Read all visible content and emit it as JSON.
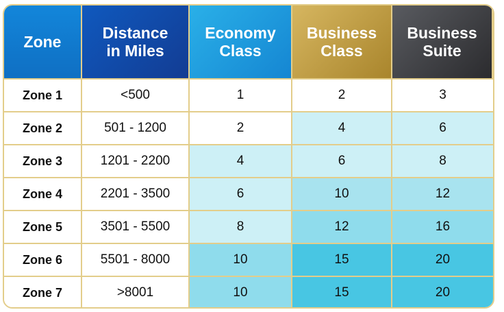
{
  "table": {
    "headers": [
      "Zone",
      "Distance\nin Miles",
      "Economy\nClass",
      "Business\nClass",
      "Business\nSuite"
    ],
    "rows": [
      {
        "zone": "Zone 1",
        "distance": "<500",
        "economy": "1",
        "business": "2",
        "suite": "3"
      },
      {
        "zone": "Zone 2",
        "distance": "501 - 1200",
        "economy": "2",
        "business": "4",
        "suite": "6"
      },
      {
        "zone": "Zone 3",
        "distance": "1201 - 2200",
        "economy": "4",
        "business": "6",
        "suite": "8"
      },
      {
        "zone": "Zone 4",
        "distance": "2201 - 3500",
        "economy": "6",
        "business": "10",
        "suite": "12"
      },
      {
        "zone": "Zone 5",
        "distance": "3501 - 5500",
        "economy": "8",
        "business": "12",
        "suite": "16"
      },
      {
        "zone": "Zone 6",
        "distance": "5501 - 8000",
        "economy": "10",
        "business": "15",
        "suite": "20"
      },
      {
        "zone": "Zone 7",
        "distance": ">8001",
        "economy": "10",
        "business": "15",
        "suite": "20"
      }
    ],
    "cell_colors": {
      "white": "#ffffff",
      "light": "#cdf0f6",
      "mid": "#a8e3ef",
      "strong": "#8fdcec",
      "deep": "#48c6e3"
    },
    "fill": [
      [
        "white",
        "white",
        "white",
        "white",
        "white"
      ],
      [
        "white",
        "white",
        "white",
        "light",
        "light"
      ],
      [
        "white",
        "white",
        "light",
        "light",
        "light"
      ],
      [
        "white",
        "white",
        "light",
        "mid",
        "mid"
      ],
      [
        "white",
        "white",
        "light",
        "strong",
        "strong"
      ],
      [
        "white",
        "white",
        "strong",
        "deep",
        "deep"
      ],
      [
        "white",
        "white",
        "strong",
        "deep",
        "deep"
      ]
    ]
  }
}
